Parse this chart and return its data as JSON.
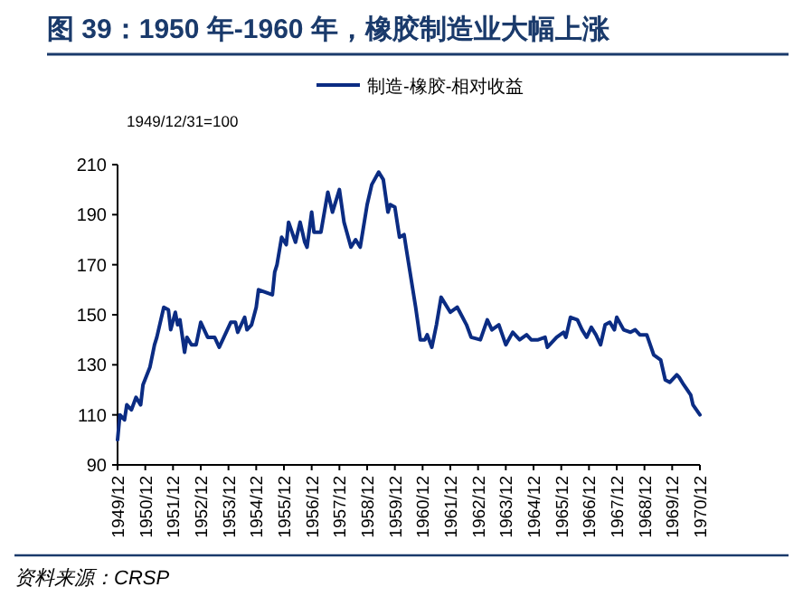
{
  "chart_data": {
    "type": "line",
    "title": "图 39：1950 年-1960 年，橡胶制造业大幅上涨",
    "annotations": [
      "1949/12/31=100",
      "资料来源：CRSP"
    ],
    "legend": "top",
    "ylim": [
      90,
      210
    ],
    "yticks": [
      90,
      110,
      130,
      150,
      170,
      190,
      210
    ],
    "xlim": [
      "1949-12",
      "1970-12"
    ],
    "xticks": [
      {
        "value": "1949-12",
        "label": "1949/12"
      },
      {
        "value": "1950-12",
        "label": "1950/12"
      },
      {
        "value": "1951-12",
        "label": "1951/12"
      },
      {
        "value": "1952-12",
        "label": "1952/12"
      },
      {
        "value": "1953-12",
        "label": "1953/12"
      },
      {
        "value": "1954-12",
        "label": "1954/12"
      },
      {
        "value": "1955-12",
        "label": "1955/12"
      },
      {
        "value": "1956-12",
        "label": "1956/12"
      },
      {
        "value": "1957-12",
        "label": "1957/12"
      },
      {
        "value": "1958-12",
        "label": "1958/12"
      },
      {
        "value": "1959-12",
        "label": "1959/12"
      },
      {
        "value": "1960-12",
        "label": "1960/12"
      },
      {
        "value": "1961-12",
        "label": "1961/12"
      },
      {
        "value": "1962-12",
        "label": "1962/12"
      },
      {
        "value": "1963-12",
        "label": "1963/12"
      },
      {
        "value": "1964-12",
        "label": "1964/12"
      },
      {
        "value": "1965-12",
        "label": "1965/12"
      },
      {
        "value": "1966-12",
        "label": "1966/12"
      },
      {
        "value": "1967-12",
        "label": "1967/12"
      },
      {
        "value": "1968-12",
        "label": "1968/12"
      },
      {
        "value": "1969-12",
        "label": "1969/12"
      },
      {
        "value": "1970-12",
        "label": "1970/12"
      }
    ],
    "series": [
      {
        "name": "制造-橡胶-相对收益",
        "color": "#0b2c83",
        "x": [
          "1949-12",
          "1950-01",
          "1950-03",
          "1950-04",
          "1950-06",
          "1950-08",
          "1950-10",
          "1950-11",
          "1951-02",
          "1951-04",
          "1951-05",
          "1951-08",
          "1951-10",
          "1951-11",
          "1952-01",
          "1952-02",
          "1952-03",
          "1952-05",
          "1952-06",
          "1952-08",
          "1952-10",
          "1952-12",
          "1953-03",
          "1953-06",
          "1953-08",
          "1953-10",
          "1954-01",
          "1954-03",
          "1954-04",
          "1954-07",
          "1954-08",
          "1954-10",
          "1954-12",
          "1955-01",
          "1955-04",
          "1955-07",
          "1955-08",
          "1955-09",
          "1955-11",
          "1956-01",
          "1956-02",
          "1956-05",
          "1956-07",
          "1956-09",
          "1956-10",
          "1956-12",
          "1957-01",
          "1957-04",
          "1957-07",
          "1957-09",
          "1957-12",
          "1958-02",
          "1958-05",
          "1958-07",
          "1958-09",
          "1958-12",
          "1959-02",
          "1959-05",
          "1959-07",
          "1959-09",
          "1959-10",
          "1959-12",
          "1960-02",
          "1960-04",
          "1960-05",
          "1960-09",
          "1960-11",
          "1961-01",
          "1961-02",
          "1961-04",
          "1961-06",
          "1961-08",
          "1961-12",
          "1962-03",
          "1962-07",
          "1962-09",
          "1963-01",
          "1963-04",
          "1963-06",
          "1963-09",
          "1963-12",
          "1964-03",
          "1964-06",
          "1964-09",
          "1964-11",
          "1965-02",
          "1965-05",
          "1965-06",
          "1965-10",
          "1966-01",
          "1966-02",
          "1966-04",
          "1966-07",
          "1966-09",
          "1966-11",
          "1967-01",
          "1967-03",
          "1967-05",
          "1967-07",
          "1967-09",
          "1967-11",
          "1967-12",
          "1968-03",
          "1968-06",
          "1968-08",
          "1968-10",
          "1969-01",
          "1969-04",
          "1969-07",
          "1969-09",
          "1969-11",
          "1970-02",
          "1970-03",
          "1970-05",
          "1970-08",
          "1970-09",
          "1970-12"
        ],
        "values": [
          100,
          110,
          108,
          114,
          112,
          117,
          114,
          122,
          129,
          138,
          141,
          153,
          152,
          144,
          151,
          146,
          148,
          135,
          141,
          138,
          138,
          147,
          141,
          141,
          137,
          141,
          147,
          147,
          143,
          149,
          144,
          146,
          153,
          160,
          159,
          158,
          167,
          170,
          181,
          178,
          187,
          179,
          187,
          179,
          177,
          191,
          183,
          183,
          199,
          191,
          200,
          187,
          177,
          180,
          177,
          194,
          202,
          207,
          204,
          191,
          194,
          193,
          181,
          182,
          176,
          153,
          140,
          140,
          142,
          137,
          146,
          157,
          151,
          153,
          146,
          141,
          140,
          148,
          144,
          146,
          138,
          143,
          140,
          142,
          140,
          140,
          141,
          137,
          141,
          143,
          141,
          149,
          148,
          144,
          141,
          145,
          142,
          138,
          146,
          147,
          144,
          149,
          144,
          143,
          144,
          142,
          142,
          134,
          132,
          124,
          123,
          126,
          125,
          122,
          118,
          114,
          110
        ]
      }
    ]
  }
}
